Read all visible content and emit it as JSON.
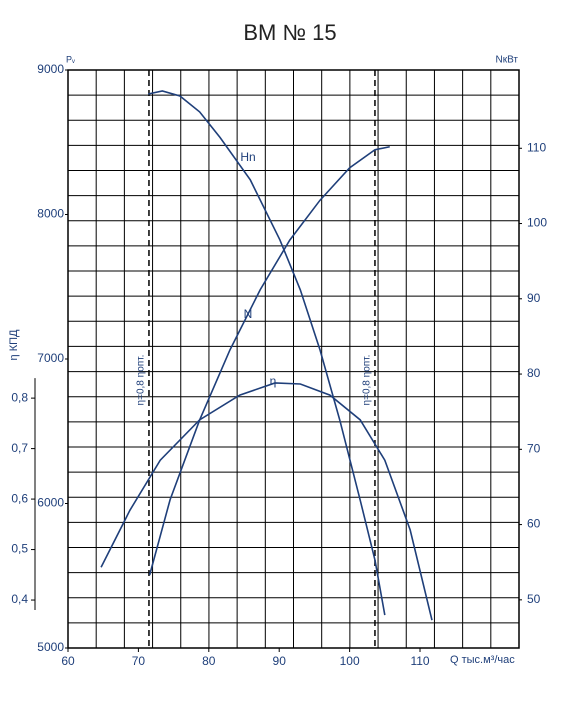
{
  "chart_data": {
    "type": "line",
    "title": "ВМ № 15",
    "xlabel": "Q тыс.м³/час",
    "ylabel": "Pᵥ",
    "y2label": "NкВт",
    "y3label": "η КПД",
    "xlim": [
      60,
      124.06
    ],
    "xticks": [
      60,
      70,
      80,
      90,
      100,
      110
    ],
    "ylim": [
      5000,
      9000
    ],
    "yticks": [
      5000,
      6000,
      7000,
      8000,
      9000
    ],
    "y2lim": [
      43.6,
      120.4
    ],
    "y2ticks": [
      50,
      60,
      70,
      80,
      90,
      100,
      110
    ],
    "y3lim": [
      0.305,
      1.45
    ],
    "y3ticks": [
      {
        "value": 0.4,
        "label": "0,4"
      },
      {
        "value": 0.5,
        "label": "0,5"
      },
      {
        "value": 0.6,
        "label": "0,6"
      },
      {
        "value": 0.7,
        "label": "0,7"
      },
      {
        "value": 0.8,
        "label": "0,8"
      }
    ],
    "grid": true,
    "color": "#1f3f7a",
    "series": [
      {
        "name": "Hn",
        "color": "#1f3f7a",
        "axis": "y",
        "x": [
          71.4,
          73.4,
          75.9,
          78.7,
          81.6,
          85.9,
          90.1,
          93.0,
          95.8,
          98.6,
          101.5,
          103.6,
          105.0
        ],
        "values": [
          8834,
          8855,
          8820,
          8710,
          8533,
          8239,
          7824,
          7478,
          7062,
          6578,
          6024,
          5609,
          5228
        ]
      },
      {
        "name": "N",
        "color": "#1f3f7a",
        "axis": "y2",
        "x": [
          71.6,
          74.5,
          78.7,
          83.0,
          87.3,
          91.5,
          95.8,
          100.0,
          103.6,
          105.7
        ],
        "values": [
          53.3,
          63.3,
          73.9,
          83.2,
          91.2,
          97.8,
          103.1,
          107.4,
          109.8,
          110.2
        ]
      },
      {
        "name": "η",
        "color": "#1f3f7a",
        "axis": "y3",
        "x": [
          64.7,
          68.8,
          73.1,
          78.7,
          84.4,
          89.4,
          93.0,
          97.2,
          101.5,
          105.0,
          108.6,
          111.7
        ],
        "values": [
          0.465,
          0.578,
          0.677,
          0.757,
          0.806,
          0.83,
          0.828,
          0.806,
          0.757,
          0.677,
          0.539,
          0.36
        ]
      }
    ],
    "vlines": [
      {
        "x": 71.5,
        "label": "η=0,8 ηопт."
      },
      {
        "x": 103.6,
        "label": "η=0,8 ηопт."
      }
    ]
  }
}
